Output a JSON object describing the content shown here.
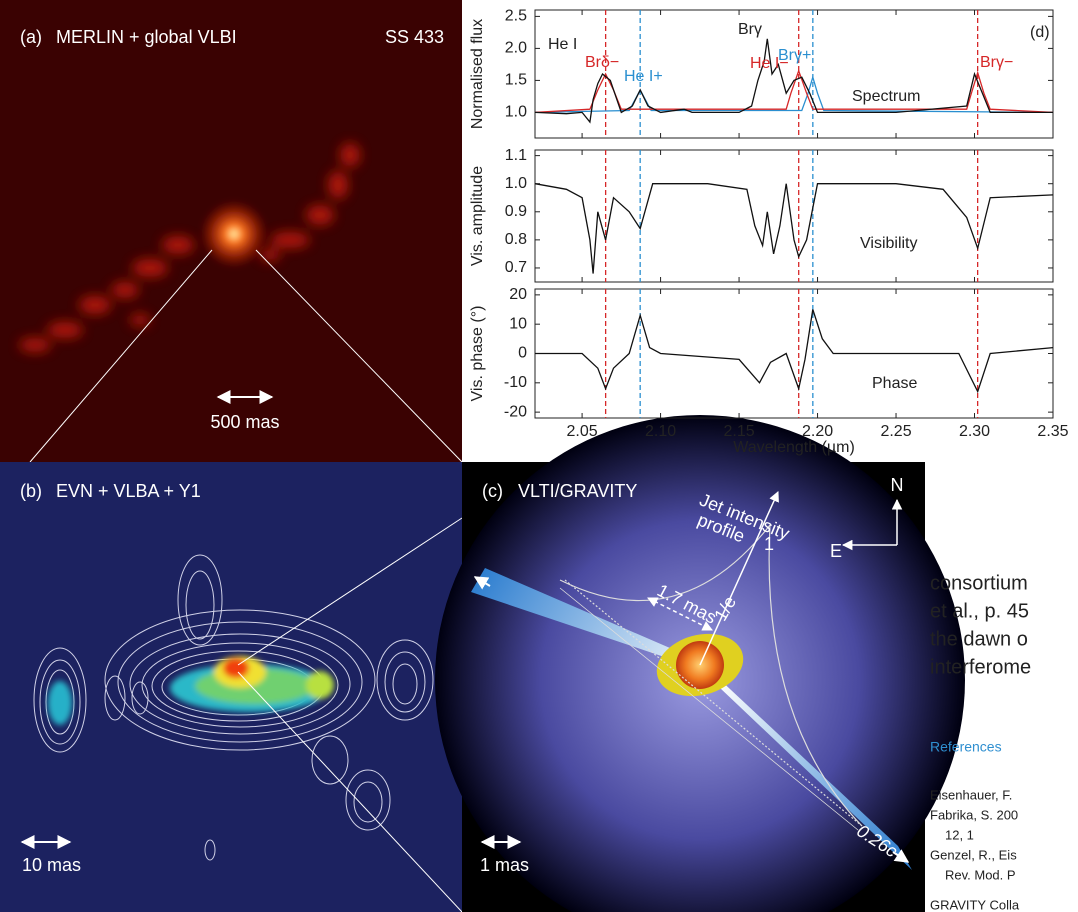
{
  "chart_data": [
    {
      "type": "line",
      "ylabel": "Normalised flux",
      "label": "Spectrum",
      "panel_label": "(d)",
      "xlim": [
        2.02,
        2.35
      ],
      "ylim": [
        0.6,
        2.6
      ],
      "yticks": [
        {
          "value": 1,
          "label": "1.0"
        },
        1.5,
        {
          "value": 2,
          "label": "2.0"
        },
        2.5
      ],
      "vlines": [
        {
          "x": 2.065,
          "color": "#d62728"
        },
        {
          "x": 2.087,
          "color": "#2a8fd0"
        },
        {
          "x": 2.188,
          "color": "#d62728"
        },
        {
          "x": 2.197,
          "color": "#2a8fd0"
        },
        {
          "x": 2.302,
          "color": "#d62728"
        }
      ],
      "annotations": [
        {
          "text": "He I",
          "color": "#222222"
        },
        {
          "text": "Brδ−",
          "color": "#d62728"
        },
        {
          "text": "He I+",
          "color": "#2a8fd0"
        },
        {
          "text": "Brγ",
          "color": "#222222"
        },
        {
          "text": "He I−",
          "color": "#d62728"
        },
        {
          "text": "Brγ+",
          "color": "#2a8fd0"
        },
        {
          "text": "Brγ−",
          "color": "#d62728"
        }
      ],
      "series": [
        {
          "color": "#2a8fd0",
          "x": [
            2.02,
            2.08,
            2.087,
            2.094,
            2.19,
            2.194,
            2.197,
            2.2,
            2.204,
            2.35
          ],
          "values": [
            1.0,
            1.03,
            1.35,
            1.03,
            1.03,
            1.3,
            1.55,
            1.3,
            1.03,
            1.0
          ]
        },
        {
          "color": "#d62728",
          "x": [
            2.02,
            2.055,
            2.06,
            2.065,
            2.07,
            2.075,
            2.18,
            2.183,
            2.188,
            2.193,
            2.197,
            2.295,
            2.298,
            2.302,
            2.306,
            2.31,
            2.35
          ],
          "values": [
            1.0,
            1.05,
            1.35,
            1.6,
            1.35,
            1.05,
            1.05,
            1.3,
            1.65,
            1.3,
            1.05,
            1.05,
            1.3,
            1.62,
            1.3,
            1.05,
            1.0
          ]
        },
        {
          "color": "#111111",
          "x": [
            2.02,
            2.04,
            2.05,
            2.055,
            2.057,
            2.06,
            2.063,
            2.068,
            2.075,
            2.082,
            2.087,
            2.092,
            2.1,
            2.115,
            2.12,
            2.15,
            2.158,
            2.162,
            2.166,
            2.168,
            2.171,
            2.175,
            2.18,
            2.185,
            2.19,
            2.195,
            2.2,
            2.25,
            2.295,
            2.3,
            2.305,
            2.31,
            2.35
          ],
          "values": [
            1.0,
            0.98,
            1.0,
            0.85,
            1.2,
            1.45,
            1.6,
            1.5,
            1.0,
            1.1,
            1.35,
            1.1,
            1.0,
            1.05,
            1.0,
            1.0,
            1.1,
            1.5,
            1.8,
            2.15,
            1.6,
            1.75,
            1.3,
            1.5,
            1.55,
            1.3,
            1.0,
            1.0,
            1.1,
            1.6,
            1.3,
            1.0,
            1.0
          ]
        }
      ]
    },
    {
      "type": "line",
      "ylabel": "Vis. amplitude",
      "label": "Visibility",
      "xlim": [
        2.02,
        2.35
      ],
      "ylim": [
        0.65,
        1.12
      ],
      "yticks": [
        0.7,
        0.8,
        0.9,
        {
          "value": 1,
          "label": "1.0"
        },
        1.1
      ],
      "series": [
        {
          "color": "#111111",
          "x": [
            2.02,
            2.04,
            2.05,
            2.055,
            2.057,
            2.06,
            2.065,
            2.07,
            2.08,
            2.087,
            2.095,
            2.13,
            2.155,
            2.16,
            2.165,
            2.168,
            2.172,
            2.176,
            2.18,
            2.185,
            2.188,
            2.193,
            2.2,
            2.25,
            2.28,
            2.295,
            2.302,
            2.31,
            2.35
          ],
          "values": [
            1.0,
            0.98,
            0.95,
            0.8,
            0.68,
            0.9,
            0.8,
            0.95,
            0.9,
            0.84,
            1.0,
            1.0,
            0.98,
            0.85,
            0.78,
            0.9,
            0.75,
            0.85,
            1.0,
            0.8,
            0.74,
            0.8,
            1.0,
            1.0,
            0.98,
            0.88,
            0.77,
            0.95,
            0.96
          ]
        }
      ]
    },
    {
      "type": "line",
      "ylabel": "Vis. phase (°)",
      "label": "Phase",
      "xlabel": "Wavelength (µm)",
      "xlim": [
        2.02,
        2.35
      ],
      "ylim": [
        -22,
        22
      ],
      "yticks": [
        -20,
        -10,
        0,
        10,
        20
      ],
      "xticks": [
        2.05,
        {
          "value": 2.1,
          "label": "2.10"
        },
        2.15,
        {
          "value": 2.2,
          "label": "2.20"
        },
        2.25,
        {
          "value": 2.3,
          "label": "2.30"
        },
        2.35
      ],
      "series": [
        {
          "color": "#111111",
          "x": [
            2.02,
            2.05,
            2.06,
            2.065,
            2.07,
            2.08,
            2.087,
            2.093,
            2.1,
            2.15,
            2.163,
            2.17,
            2.18,
            2.188,
            2.192,
            2.197,
            2.203,
            2.21,
            2.29,
            2.302,
            2.31,
            2.35
          ],
          "values": [
            0,
            0,
            -5,
            -12,
            -5,
            0,
            13,
            2,
            0,
            -2,
            -10,
            -3,
            0,
            -12,
            -2,
            15,
            5,
            0,
            0,
            -13,
            0,
            2
          ]
        }
      ]
    }
  ],
  "panels": {
    "a": {
      "letter": "(a)",
      "title": "MERLIN + global VLBI",
      "source": "SS 433",
      "scale": "500 mas"
    },
    "b": {
      "letter": "(b)",
      "title": "EVN + VLBA + Y1",
      "scale": "10 mas"
    },
    "c": {
      "letter": "(c)",
      "title": "VLTI/GRAVITY",
      "north": "N",
      "east": "E",
      "profile": [
        "Jet intensity",
        "profile"
      ],
      "peak": "1",
      "e_fold": "1/e",
      "width": "1.7 mas",
      "speed": "0.26c",
      "scale": "1 mas"
    }
  },
  "text": {
    "body": [
      "consortium",
      "et al., p. 45",
      "the dawn o",
      "interferome"
    ],
    "references_heading": "References",
    "references": [
      "Eisenhauer, F.",
      "Fabrika, S. 200",
      "12, 1",
      "Genzel, R., Eis",
      "Rev. Mod. P",
      "GRAVITY Colla"
    ]
  }
}
